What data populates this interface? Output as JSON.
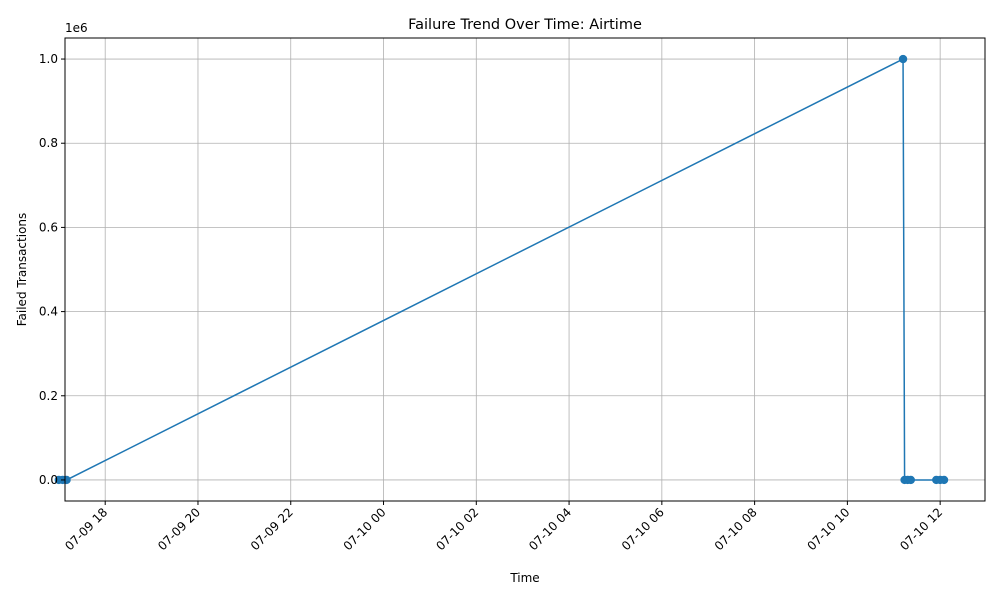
{
  "chart_data": {
    "type": "line",
    "title": "Failure Trend Over Time: Airtime",
    "xlabel": "Time",
    "ylabel": "Failed Transactions",
    "y_offset_label": "1e6",
    "grid": true,
    "color": "#1f77b4",
    "x_ticks": [
      "07-09 18",
      "07-09 20",
      "07-09 22",
      "07-10 00",
      "07-10 02",
      "07-10 04",
      "07-10 06",
      "07-10 08",
      "07-10 10",
      "07-10 12"
    ],
    "y_ticks": [
      "0.0",
      "0.2",
      "0.4",
      "0.6",
      "0.8",
      "1.0"
    ],
    "ylim": [
      -0.05,
      1.05
    ],
    "xlim": [
      "07-09 17:08",
      "07-10 12:58"
    ],
    "series": [
      {
        "points": [
          {
            "x": "07-09 17:00",
            "y": 0
          },
          {
            "x": "07-09 17:05",
            "y": 0
          },
          {
            "x": "07-09 17:10",
            "y": 0
          },
          {
            "x": "07-10 11:12",
            "y": 1.0
          },
          {
            "x": "07-10 11:14",
            "y": 0
          },
          {
            "x": "07-10 11:18",
            "y": 0
          },
          {
            "x": "07-10 11:22",
            "y": 0
          },
          {
            "x": "07-10 11:55",
            "y": 0
          },
          {
            "x": "07-10 12:00",
            "y": 0
          },
          {
            "x": "07-10 12:05",
            "y": 0
          }
        ]
      }
    ]
  }
}
